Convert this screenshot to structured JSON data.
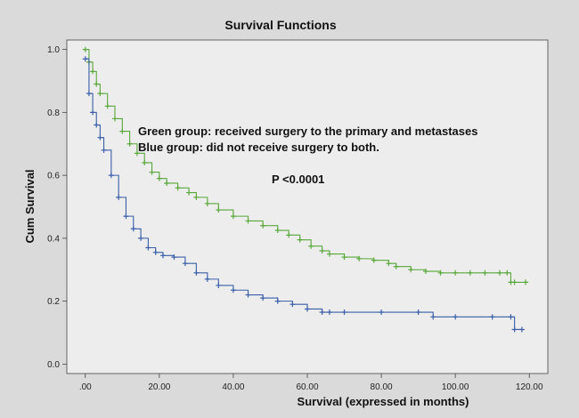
{
  "chart_data": {
    "type": "line",
    "title": "Survival Functions",
    "xlabel": "Survival (expressed in months)",
    "ylabel": "Cum Survival",
    "xlim": [
      -5,
      125
    ],
    "ylim": [
      -0.03,
      1.03
    ],
    "x_ticks": [
      0,
      20,
      40,
      60,
      80,
      100,
      120
    ],
    "x_tick_labels": [
      ".00",
      "20.00",
      "40.00",
      "60.00",
      "80.00",
      "100.00",
      "120.00"
    ],
    "y_ticks": [
      0.0,
      0.2,
      0.4,
      0.6,
      0.8,
      1.0
    ],
    "y_tick_labels": [
      "0.0",
      "0.2",
      "0.4",
      "0.6",
      "0.8",
      "1.0"
    ],
    "grid": false,
    "series": [
      {
        "color": "#5aa83c",
        "x": [
          0,
          1,
          2,
          3,
          4,
          6,
          8,
          10,
          12,
          14,
          16,
          18,
          20,
          22,
          25,
          28,
          30,
          33,
          36,
          40,
          44,
          48,
          52,
          55,
          58,
          61,
          64,
          66,
          70,
          74,
          78,
          82,
          84,
          88,
          92,
          96,
          100,
          104,
          108,
          112,
          114,
          115,
          116,
          119
        ],
        "y": [
          1.0,
          0.96,
          0.93,
          0.89,
          0.86,
          0.82,
          0.78,
          0.74,
          0.7,
          0.67,
          0.64,
          0.61,
          0.59,
          0.575,
          0.56,
          0.545,
          0.53,
          0.51,
          0.49,
          0.47,
          0.455,
          0.44,
          0.425,
          0.41,
          0.395,
          0.375,
          0.36,
          0.35,
          0.34,
          0.335,
          0.33,
          0.32,
          0.31,
          0.3,
          0.295,
          0.29,
          0.29,
          0.29,
          0.29,
          0.29,
          0.29,
          0.26,
          0.26,
          0.26
        ]
      },
      {
        "color": "#3a5fa8",
        "x": [
          0,
          1,
          2,
          3,
          4,
          5,
          7,
          9,
          11,
          13,
          15,
          17,
          19,
          21,
          24,
          27,
          30,
          33,
          36,
          40,
          44,
          48,
          52,
          56,
          60,
          64,
          66,
          70,
          80,
          90,
          94,
          100,
          110,
          115,
          116,
          118
        ],
        "y": [
          0.97,
          0.86,
          0.8,
          0.76,
          0.72,
          0.68,
          0.6,
          0.53,
          0.47,
          0.43,
          0.4,
          0.37,
          0.355,
          0.345,
          0.34,
          0.32,
          0.29,
          0.27,
          0.25,
          0.235,
          0.22,
          0.21,
          0.2,
          0.19,
          0.175,
          0.165,
          0.165,
          0.165,
          0.165,
          0.165,
          0.15,
          0.15,
          0.15,
          0.15,
          0.11,
          0.11
        ]
      }
    ],
    "annotations": [
      "Green group: received surgery to the primary and metastases",
      "Blue group: did not receive surgery to both.",
      "P <0.0001"
    ]
  }
}
